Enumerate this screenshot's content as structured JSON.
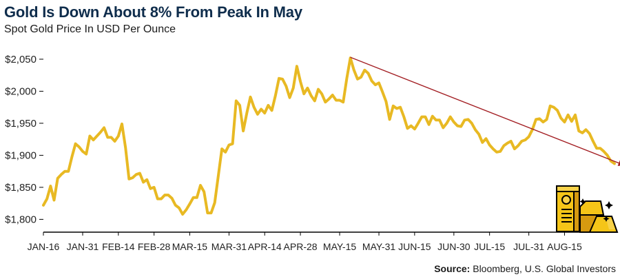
{
  "title": "Gold Is Down About 8% From Peak In May",
  "subtitle": "Spot Gold Price In USD Per Ounce",
  "source_label": "Source:",
  "source_text": "Bloomberg, U.S. Global Investors",
  "colors": {
    "line": "#e8b923",
    "trend": "#a31f24",
    "title": "#0f2d4c"
  },
  "icons": [
    "gold-bars-icon"
  ],
  "chart_data": {
    "type": "line",
    "title": "Gold Is Down About 8% From Peak In May",
    "ylabel": "Spot Gold Price In USD Per Ounce",
    "xlabel": "",
    "ylim": [
      1780,
      2065
    ],
    "yticks": [
      1800,
      1850,
      1900,
      1950,
      2000,
      2050
    ],
    "ytick_labels": [
      "$1,800",
      "$1,850",
      "$1,900",
      "$1,950",
      "$2,000",
      "$2,050"
    ],
    "xtick_labels": [
      "JAN-16",
      "JAN-31",
      "FEB-14",
      "FEB-28",
      "MAR-15",
      "MAR-31",
      "APR-14",
      "APR-28",
      "MAY-15",
      "MAY-31",
      "JUN-15",
      "JUN-30",
      "JUL-15",
      "JUL-31",
      "AUG-15"
    ],
    "xtick_index": [
      0,
      11,
      21,
      31,
      41,
      52,
      62,
      72,
      83,
      94,
      104,
      115,
      125,
      136,
      146
    ],
    "series": [
      {
        "name": "Spot Gold Price",
        "values": [
          1822,
          1832,
          1852,
          1830,
          1864,
          1870,
          1875,
          1875,
          1898,
          1918,
          1913,
          1906,
          1902,
          1930,
          1924,
          1930,
          1936,
          1943,
          1928,
          1928,
          1922,
          1930,
          1949,
          1912,
          1863,
          1865,
          1870,
          1872,
          1858,
          1862,
          1848,
          1850,
          1832,
          1832,
          1838,
          1838,
          1833,
          1822,
          1818,
          1808,
          1815,
          1824,
          1834,
          1834,
          1853,
          1843,
          1810,
          1810,
          1826,
          1868,
          1910,
          1905,
          1916,
          1918,
          1985,
          1978,
          1938,
          1966,
          1991,
          1975,
          1964,
          1972,
          1966,
          1978,
          1970,
          1993,
          2020,
          2019,
          2008,
          1990,
          2005,
          2039,
          2015,
          1996,
          2005,
          1993,
          1985,
          2003,
          1996,
          1983,
          1988,
          1994,
          1986,
          1986,
          1983,
          2020,
          2052,
          2033,
          2019,
          2022,
          2033,
          2028,
          2016,
          2010,
          2013,
          1999,
          1984,
          1956,
          1977,
          1973,
          1975,
          1960,
          1942,
          1946,
          1941,
          1950,
          1960,
          1960,
          1948,
          1961,
          1955,
          1955,
          1943,
          1950,
          1960,
          1952,
          1946,
          1945,
          1955,
          1956,
          1950,
          1940,
          1933,
          1920,
          1926,
          1916,
          1910,
          1905,
          1906,
          1915,
          1919,
          1922,
          1910,
          1915,
          1922,
          1924,
          1929,
          1940,
          1956,
          1957,
          1952,
          1956,
          1977,
          1975,
          1970,
          1958,
          1952,
          1963,
          1953,
          1963,
          1938,
          1935,
          1940,
          1934,
          1922,
          1911,
          1911,
          1906,
          1900,
          1891,
          1887
        ]
      },
      {
        "name": "Downtrend",
        "from_index": 86,
        "to_index": 163,
        "values": [
          2053,
          1884
        ]
      }
    ]
  }
}
